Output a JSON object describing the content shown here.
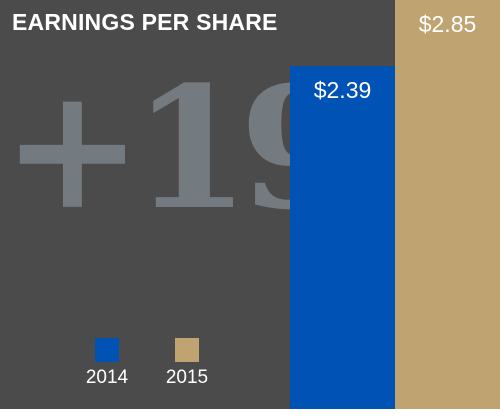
{
  "chart_data": {
    "type": "bar",
    "title": "EARNINGS PER SHARE",
    "annotation": "+19",
    "categories": [
      "2014",
      "2015"
    ],
    "values": [
      2.39,
      2.85
    ],
    "value_labels": [
      "$2.39",
      "$2.85"
    ],
    "colors": {
      "2014": "#0052b4",
      "2015": "#bfa472",
      "background": "#4b4b4b",
      "annotation": "#737b80"
    },
    "legend": [
      "2014",
      "2015"
    ],
    "grid": false,
    "legend_position": "bottom-left"
  }
}
